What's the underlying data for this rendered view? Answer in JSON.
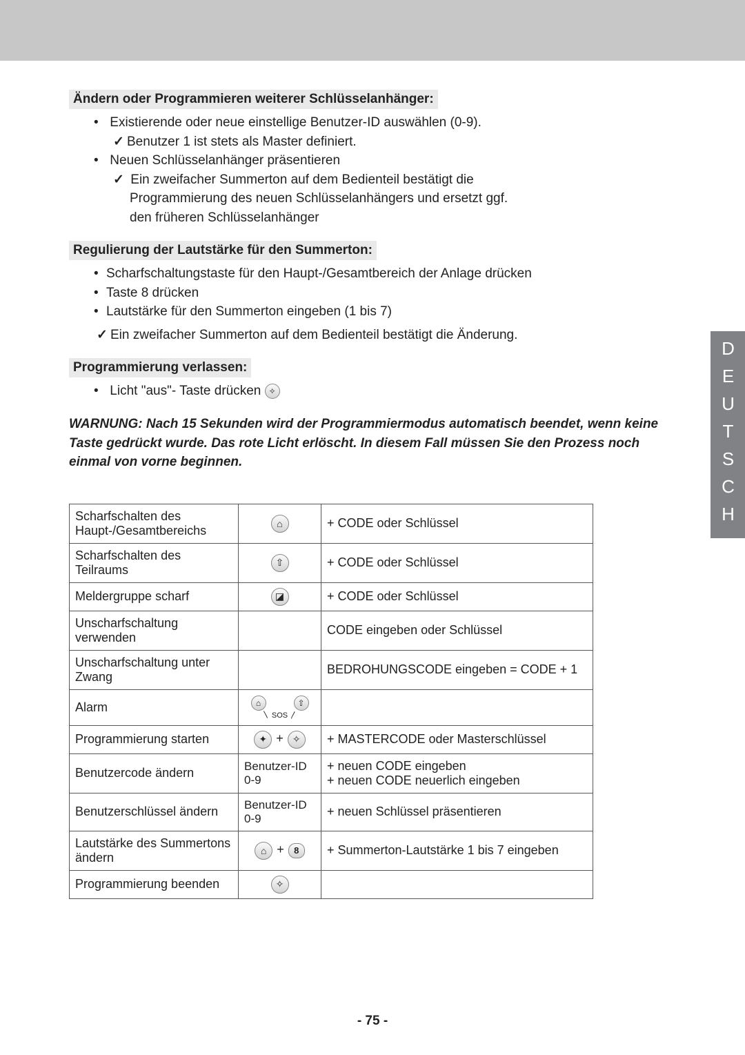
{
  "language_tab": "DEUTSCH",
  "page_number": "- 75 -",
  "sections": {
    "s1_title": "Ändern oder Programmieren weiterer Schlüsselanhänger",
    "s1_b1": "Existierende oder neue einstellige Benutzer-ID auswählen (0-9).",
    "s1_b1_c1": "Benutzer 1 ist stets als Master definiert.",
    "s1_b2": "Neuen Schlüsselanhänger präsentieren",
    "s1_b2_c1a": "Ein zweifacher Summerton auf dem Bedienteil bestätigt die",
    "s1_b2_c1b": "Programmierung des neuen Schlüsselanhängers und ersetzt ggf.",
    "s1_b2_c1c": "den früheren Schlüsselanhänger",
    "s2_title": "Regulierung der Lautstärke für den Summerton",
    "s2_b1": "Scharfschaltungstaste für den Haupt-/Gesamtbereich der Anlage drücken",
    "s2_b2": "Taste 8 drücken",
    "s2_b3": "Lautstärke für den Summerton eingeben (1 bis 7)",
    "s2_c1": "Ein zweifacher Summerton auf dem Bedienteil bestätigt die Änderung.",
    "s3_title": "Programmierung verlassen",
    "s3_b1": "Licht \"aus\"- Taste drücken",
    "warning": "WARNUNG: Nach 15 Sekunden wird der Programmiermodus automatisch beendet, wenn keine Taste gedrückt wurde. Das rote Licht erlöscht. In diesem Fall müssen Sie den Prozess noch einmal von vorne beginnen."
  },
  "table": [
    {
      "c1": "Scharfschalten des Haupt-/Gesamtbereichs",
      "c2_icon": "house-filled",
      "c3": "+ CODE oder Schlüssel"
    },
    {
      "c1": "Scharfschalten des Teilraums",
      "c2_icon": "house-outline",
      "c3": "+ CODE oder Schlüssel"
    },
    {
      "c1": "Meldergruppe scharf",
      "c2_icon": "house-square",
      "c3": "+ CODE oder Schlüssel"
    },
    {
      "c1": "Unscharfschaltung verwenden",
      "c2_icon": "",
      "c3": "CODE eingeben oder Schlüssel"
    },
    {
      "c1": "Unscharfschaltung unter Zwang",
      "c2_icon": "",
      "c3": "BEDROHUNGSCODE eingeben = CODE + 1"
    },
    {
      "c1": "Alarm",
      "c2_icon": "sos",
      "c3": ""
    },
    {
      "c1": "Programmierung starten",
      "c2_icon": "light-on-off",
      "c3": "+   MASTERCODE oder Masterschlüssel"
    },
    {
      "c1": "Benutzercode ändern",
      "c2_text": "Benutzer-ID 0-9",
      "c3": "+ neuen CODE eingeben\n+ neuen CODE neuerlich eingeben"
    },
    {
      "c1": "Benutzerschlüssel ändern",
      "c2_text": "Benutzer-ID 0-9",
      "c3": "+ neuen Schlüssel präsentieren"
    },
    {
      "c1": "Lautstärke des Summertons ändern",
      "c2_icon": "house-plus-8",
      "c3": "+ Summerton-Lautstärke 1 bis 7 eingeben"
    },
    {
      "c1": "Programmierung beenden",
      "c2_icon": "light-off",
      "c3": ""
    }
  ],
  "icons": {
    "house-filled": "⌂",
    "house-outline": "⇧",
    "house-square": "◪",
    "light-on": "✦",
    "light-off": "✧",
    "key8": "8",
    "sos": "SOS"
  },
  "colors": {
    "header_bg": "#c7c7c8",
    "highlight_bg": "#e9e9ea",
    "tab_bg": "#808285",
    "tab_fg": "#ffffff",
    "border": "#555555",
    "text": "#222222"
  }
}
